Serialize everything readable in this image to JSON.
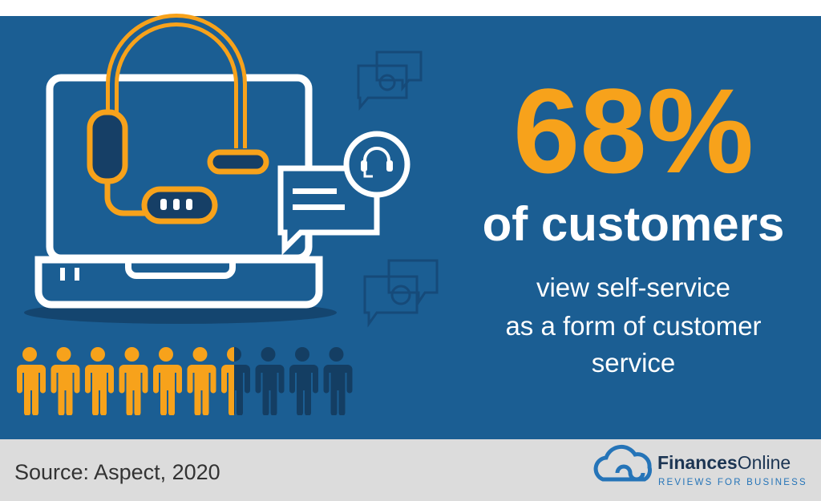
{
  "stat": {
    "value": "68%",
    "label": "of customers",
    "description": [
      "view self-service",
      "as a form of customer",
      "service"
    ]
  },
  "footer": {
    "source": "Source: Aspect, 2020",
    "brand_bold": "Finances",
    "brand_light": "Online",
    "tagline": "REVIEWS FOR BUSINESS"
  }
}
